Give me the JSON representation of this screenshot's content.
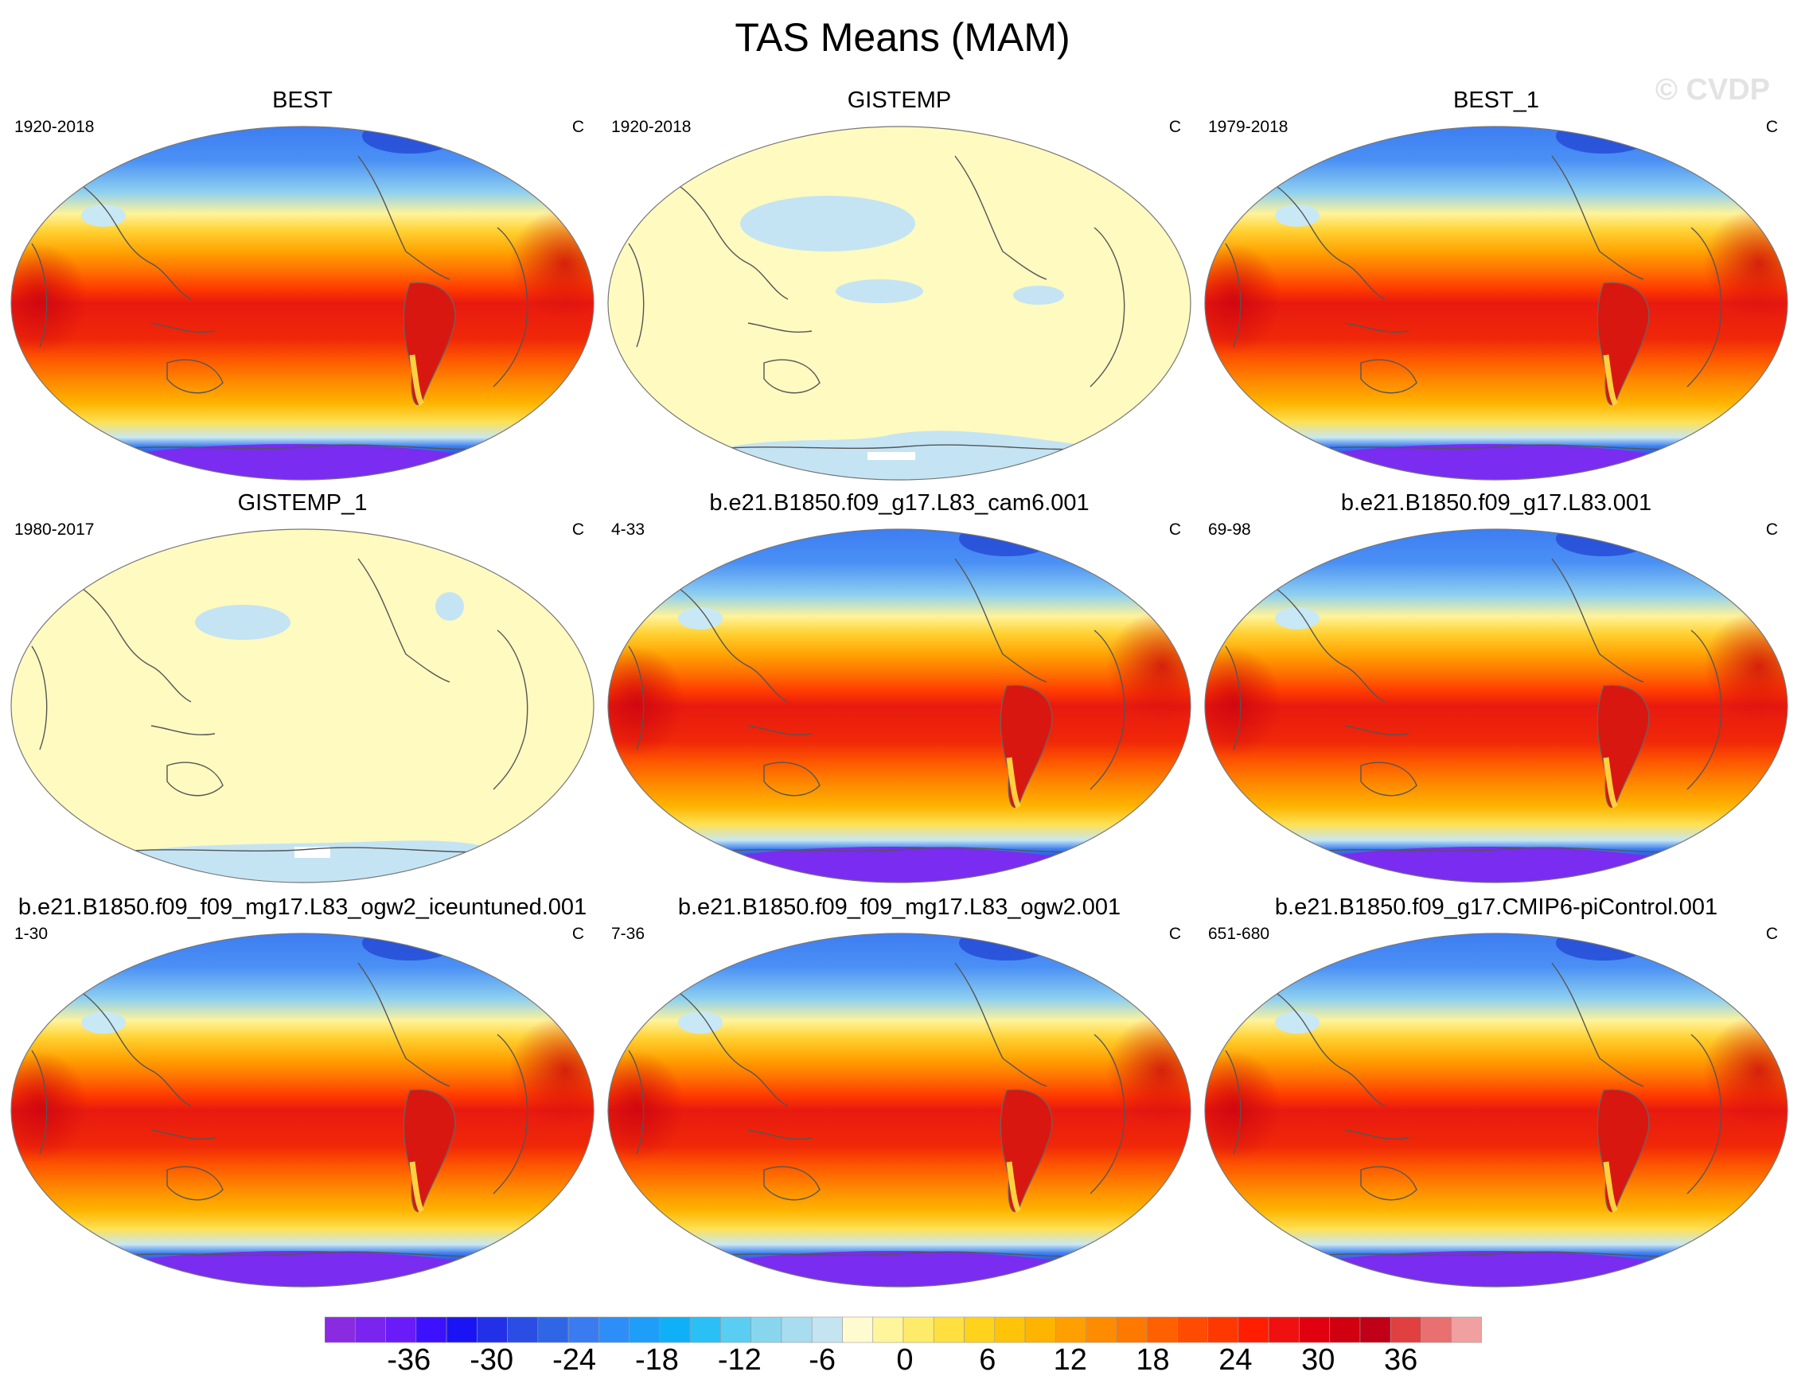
{
  "title": "TAS Means (MAM)",
  "watermark": "© CVDP",
  "units": "C",
  "colors": {
    "warm_ocean": "#ff6f00",
    "hot_tropics": "#e81010",
    "cold_polar": "#5a8cff",
    "antarctic": "#7a2cf0",
    "neutral_pale": "#fefac0",
    "coast": "#555555"
  },
  "panels": [
    {
      "title": "BEST",
      "range": "1920-2018",
      "units": "C",
      "style": "full"
    },
    {
      "title": "GISTEMP",
      "range": "1920-2018",
      "units": "C",
      "style": "pale"
    },
    {
      "title": "BEST_1",
      "range": "1979-2018",
      "units": "C",
      "style": "full"
    },
    {
      "title": "GISTEMP_1",
      "range": "1980-2017",
      "units": "C",
      "style": "pale"
    },
    {
      "title": "b.e21.B1850.f09_g17.L83_cam6.001",
      "range": "4-33",
      "units": "C",
      "style": "full"
    },
    {
      "title": "b.e21.B1850.f09_g17.L83.001",
      "range": "69-98",
      "units": "C",
      "style": "full"
    },
    {
      "title": "b.e21.B1850.f09_f09_mg17.L83_ogw2_iceuntuned.001",
      "range": "1-30",
      "units": "C",
      "style": "full"
    },
    {
      "title": "b.e21.B1850.f09_f09_mg17.L83_ogw2.001",
      "range": "7-36",
      "units": "C",
      "style": "full"
    },
    {
      "title": "b.e21.B1850.f09_g17.CMIP6-piControl.001",
      "range": "651-680",
      "units": "C",
      "style": "full"
    }
  ],
  "chart_data": {
    "type": "heatmap",
    "projection": "Robinson-like global map, Pacific-centered",
    "colorbar": {
      "ticks": [
        -36,
        -30,
        -24,
        -18,
        -12,
        -6,
        0,
        6,
        12,
        18,
        24,
        30,
        36
      ],
      "tick_labels": [
        "-36",
        "-30",
        "-24",
        "-18",
        "-12",
        "-6",
        "0",
        "6",
        "12",
        "18",
        "24",
        "30",
        "36"
      ],
      "range": [
        -42,
        42
      ],
      "step": 2,
      "colors": [
        "#8a2be2",
        "#7a24ef",
        "#6a1cf8",
        "#3d10ff",
        "#1a14f4",
        "#2230e8",
        "#2a4ee4",
        "#2f66e6",
        "#3a7cf0",
        "#2e8ef8",
        "#1e9ef8",
        "#10b0f8",
        "#2ac0f5",
        "#5acdf2",
        "#87d6ee",
        "#a8dcef",
        "#c4e4f2",
        "#fffbd0",
        "#fff59a",
        "#ffeb6a",
        "#ffe040",
        "#ffd21c",
        "#ffc40a",
        "#ffb400",
        "#ffa000",
        "#ff8c00",
        "#ff7800",
        "#ff6000",
        "#ff4c00",
        "#ff3800",
        "#ff1e00",
        "#f01010",
        "#e00010",
        "#d00010",
        "#c00018",
        "#e04040",
        "#e87070",
        "#f0a0a0"
      ]
    }
  }
}
